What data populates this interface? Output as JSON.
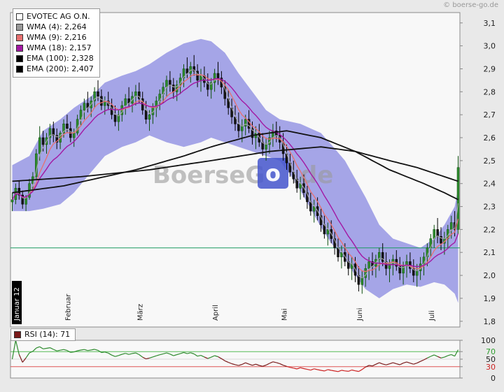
{
  "copyright": "© boerse-go.de",
  "legend": {
    "items": [
      {
        "swatch": "#ffffff",
        "label": "EVOTEC AG O.N."
      },
      {
        "swatch": "#9a9a9a",
        "label": "WMA (4): 2,264"
      },
      {
        "swatch": "#e87070",
        "label": "WMA (9): 2,216"
      },
      {
        "swatch": "#a318a3",
        "label": "WMA (18): 2,157"
      },
      {
        "swatch": "#000000",
        "label": "EMA (100): 2,328"
      },
      {
        "swatch": "#000000",
        "label": "EMA (200): 2,407"
      }
    ]
  },
  "rsi_legend": {
    "swatch": "#7a1a1a",
    "label": "RSI (14): 71"
  },
  "chart_data": {
    "type": "candlestick",
    "instrument": "EVOTEC AG O.N.",
    "ylim": [
      1.8,
      3.1
    ],
    "y_ticks": [
      {
        "value": 3.1,
        "label": "3,1"
      },
      {
        "value": 3.0,
        "label": "3,0"
      },
      {
        "value": 2.9,
        "label": "2,9"
      },
      {
        "value": 2.8,
        "label": "2,8"
      },
      {
        "value": 2.7,
        "label": "2,7"
      },
      {
        "value": 2.6,
        "label": "2,6"
      },
      {
        "value": 2.5,
        "label": "2,5"
      },
      {
        "value": 2.4,
        "label": "2,4"
      },
      {
        "value": 2.3,
        "label": "2,3"
      },
      {
        "value": 2.2,
        "label": "2,2"
      },
      {
        "value": 2.1,
        "label": "2,1"
      },
      {
        "value": 2.0,
        "label": "2,0"
      },
      {
        "value": 1.9,
        "label": "1,9"
      },
      {
        "value": 1.8,
        "label": "1,8"
      }
    ],
    "x_months": [
      {
        "label": "Januar 12",
        "index": 0,
        "highlighted": true
      },
      {
        "label": "Februar",
        "index": 15,
        "highlighted": false
      },
      {
        "label": "März",
        "index": 36,
        "highlighted": false
      },
      {
        "label": "April",
        "index": 58,
        "highlighted": false
      },
      {
        "label": "Mai",
        "index": 78,
        "highlighted": false
      },
      {
        "label": "Juni",
        "index": 100,
        "highlighted": false
      },
      {
        "label": "Juli",
        "index": 121,
        "highlighted": false
      }
    ],
    "support_line": {
      "value": 2.12,
      "color": "#1a9a60"
    },
    "candle_colors": {
      "up_fill": "#2e8b2e",
      "up_stroke": "#0d4f0d",
      "down_fill": "#161616",
      "down_stroke": "#000000"
    },
    "candles": [
      [
        2.32,
        2.36,
        2.28,
        2.33
      ],
      [
        2.33,
        2.4,
        2.31,
        2.38
      ],
      [
        2.38,
        2.41,
        2.33,
        2.35
      ],
      [
        2.35,
        2.37,
        2.29,
        2.31
      ],
      [
        2.31,
        2.35,
        2.28,
        2.34
      ],
      [
        2.34,
        2.42,
        2.33,
        2.4
      ],
      [
        2.4,
        2.45,
        2.37,
        2.43
      ],
      [
        2.43,
        2.55,
        2.42,
        2.53
      ],
      [
        2.53,
        2.65,
        2.5,
        2.6
      ],
      [
        2.6,
        2.63,
        2.54,
        2.57
      ],
      [
        2.57,
        2.62,
        2.53,
        2.6
      ],
      [
        2.6,
        2.66,
        2.57,
        2.64
      ],
      [
        2.64,
        2.67,
        2.58,
        2.61
      ],
      [
        2.61,
        2.64,
        2.55,
        2.58
      ],
      [
        2.58,
        2.63,
        2.55,
        2.62
      ],
      [
        2.62,
        2.68,
        2.6,
        2.66
      ],
      [
        2.66,
        2.7,
        2.62,
        2.64
      ],
      [
        2.64,
        2.67,
        2.58,
        2.6
      ],
      [
        2.6,
        2.64,
        2.56,
        2.62
      ],
      [
        2.62,
        2.7,
        2.61,
        2.68
      ],
      [
        2.68,
        2.74,
        2.65,
        2.72
      ],
      [
        2.72,
        2.77,
        2.68,
        2.75
      ],
      [
        2.75,
        2.8,
        2.71,
        2.73
      ],
      [
        2.73,
        2.78,
        2.69,
        2.76
      ],
      [
        2.76,
        2.82,
        2.73,
        2.8
      ],
      [
        2.8,
        2.85,
        2.76,
        2.78
      ],
      [
        2.78,
        2.81,
        2.72,
        2.74
      ],
      [
        2.74,
        2.78,
        2.7,
        2.76
      ],
      [
        2.76,
        2.8,
        2.72,
        2.74
      ],
      [
        2.74,
        2.77,
        2.68,
        2.7
      ],
      [
        2.7,
        2.74,
        2.65,
        2.67
      ],
      [
        2.67,
        2.72,
        2.63,
        2.7
      ],
      [
        2.7,
        2.76,
        2.67,
        2.74
      ],
      [
        2.74,
        2.79,
        2.7,
        2.77
      ],
      [
        2.77,
        2.82,
        2.73,
        2.75
      ],
      [
        2.75,
        2.8,
        2.71,
        2.78
      ],
      [
        2.78,
        2.83,
        2.74,
        2.8
      ],
      [
        2.8,
        2.84,
        2.75,
        2.77
      ],
      [
        2.77,
        2.8,
        2.7,
        2.72
      ],
      [
        2.72,
        2.76,
        2.66,
        2.68
      ],
      [
        2.68,
        2.72,
        2.63,
        2.7
      ],
      [
        2.7,
        2.75,
        2.66,
        2.73
      ],
      [
        2.73,
        2.78,
        2.69,
        2.76
      ],
      [
        2.76,
        2.81,
        2.72,
        2.79
      ],
      [
        2.79,
        2.84,
        2.75,
        2.82
      ],
      [
        2.82,
        2.87,
        2.78,
        2.85
      ],
      [
        2.85,
        2.89,
        2.8,
        2.83
      ],
      [
        2.83,
        2.86,
        2.77,
        2.8
      ],
      [
        2.8,
        2.85,
        2.76,
        2.83
      ],
      [
        2.83,
        2.88,
        2.79,
        2.86
      ],
      [
        2.86,
        2.92,
        2.82,
        2.9
      ],
      [
        2.9,
        2.95,
        2.86,
        2.88
      ],
      [
        2.88,
        2.93,
        2.84,
        2.91
      ],
      [
        2.91,
        2.96,
        2.87,
        2.89
      ],
      [
        2.89,
        2.92,
        2.82,
        2.85
      ],
      [
        2.85,
        2.9,
        2.8,
        2.87
      ],
      [
        2.87,
        2.91,
        2.82,
        2.84
      ],
      [
        2.84,
        2.88,
        2.78,
        2.81
      ],
      [
        2.81,
        2.86,
        2.77,
        2.84
      ],
      [
        2.84,
        2.9,
        2.8,
        2.88
      ],
      [
        2.88,
        2.93,
        2.83,
        2.86
      ],
      [
        2.86,
        2.89,
        2.79,
        2.82
      ],
      [
        2.82,
        2.85,
        2.74,
        2.77
      ],
      [
        2.77,
        2.81,
        2.7,
        2.73
      ],
      [
        2.73,
        2.77,
        2.66,
        2.69
      ],
      [
        2.69,
        2.74,
        2.63,
        2.66
      ],
      [
        2.66,
        2.71,
        2.6,
        2.63
      ],
      [
        2.63,
        2.68,
        2.58,
        2.65
      ],
      [
        2.65,
        2.7,
        2.61,
        2.68
      ],
      [
        2.68,
        2.72,
        2.62,
        2.64
      ],
      [
        2.64,
        2.67,
        2.57,
        2.6
      ],
      [
        2.6,
        2.65,
        2.55,
        2.62
      ],
      [
        2.62,
        2.66,
        2.56,
        2.58
      ],
      [
        2.58,
        2.62,
        2.52,
        2.55
      ],
      [
        2.55,
        2.6,
        2.5,
        2.57
      ],
      [
        2.57,
        2.63,
        2.53,
        2.6
      ],
      [
        2.6,
        2.66,
        2.56,
        2.63
      ],
      [
        2.63,
        2.67,
        2.58,
        2.61
      ],
      [
        2.61,
        2.65,
        2.55,
        2.58
      ],
      [
        2.58,
        2.62,
        2.5,
        2.53
      ],
      [
        2.53,
        2.57,
        2.46,
        2.49
      ],
      [
        2.49,
        2.53,
        2.43,
        2.45
      ],
      [
        2.45,
        2.5,
        2.4,
        2.42
      ],
      [
        2.42,
        2.46,
        2.36,
        2.38
      ],
      [
        2.38,
        2.43,
        2.33,
        2.4
      ],
      [
        2.4,
        2.44,
        2.34,
        2.36
      ],
      [
        2.36,
        2.39,
        2.29,
        2.32
      ],
      [
        2.32,
        2.36,
        2.26,
        2.28
      ],
      [
        2.28,
        2.33,
        2.23,
        2.3
      ],
      [
        2.3,
        2.34,
        2.24,
        2.26
      ],
      [
        2.26,
        2.29,
        2.19,
        2.22
      ],
      [
        2.22,
        2.26,
        2.16,
        2.18
      ],
      [
        2.18,
        2.23,
        2.13,
        2.2
      ],
      [
        2.2,
        2.24,
        2.14,
        2.16
      ],
      [
        2.16,
        2.19,
        2.09,
        2.12
      ],
      [
        2.12,
        2.16,
        2.06,
        2.08
      ],
      [
        2.08,
        2.13,
        2.03,
        2.1
      ],
      [
        2.1,
        2.14,
        2.04,
        2.06
      ],
      [
        2.06,
        2.1,
        2.0,
        2.03
      ],
      [
        2.03,
        2.08,
        1.98,
        2.05
      ],
      [
        2.05,
        2.08,
        1.97,
        2.0
      ],
      [
        2.0,
        2.04,
        1.93,
        1.96
      ],
      [
        1.96,
        2.02,
        1.92,
        1.99
      ],
      [
        1.99,
        2.05,
        1.95,
        2.03
      ],
      [
        2.03,
        2.08,
        1.98,
        2.06
      ],
      [
        2.06,
        2.1,
        2.0,
        2.04
      ],
      [
        2.04,
        2.09,
        1.99,
        2.07
      ],
      [
        2.07,
        2.12,
        2.02,
        2.1
      ],
      [
        2.1,
        2.14,
        2.04,
        2.06
      ],
      [
        2.06,
        2.1,
        2.0,
        2.03
      ],
      [
        2.03,
        2.07,
        1.97,
        2.05
      ],
      [
        2.05,
        2.09,
        2.0,
        2.07
      ],
      [
        2.07,
        2.11,
        2.02,
        2.04
      ],
      [
        2.04,
        2.08,
        1.98,
        2.01
      ],
      [
        2.01,
        2.06,
        1.96,
        2.04
      ],
      [
        2.04,
        2.09,
        1.99,
        2.06
      ],
      [
        2.06,
        2.1,
        2.01,
        2.03
      ],
      [
        2.03,
        2.07,
        1.97,
        2.0
      ],
      [
        2.0,
        2.05,
        1.95,
        2.02
      ],
      [
        2.02,
        2.08,
        1.98,
        2.05
      ],
      [
        2.05,
        2.1,
        2.0,
        2.08
      ],
      [
        2.08,
        2.14,
        2.04,
        2.12
      ],
      [
        2.12,
        2.18,
        2.08,
        2.16
      ],
      [
        2.16,
        2.22,
        2.12,
        2.2
      ],
      [
        2.2,
        2.25,
        2.14,
        2.17
      ],
      [
        2.17,
        2.21,
        2.11,
        2.14
      ],
      [
        2.14,
        2.19,
        2.09,
        2.16
      ],
      [
        2.16,
        2.22,
        2.12,
        2.2
      ],
      [
        2.2,
        2.26,
        2.16,
        2.23
      ],
      [
        2.23,
        2.28,
        2.17,
        2.2
      ],
      [
        2.2,
        2.52,
        2.18,
        2.47
      ]
    ],
    "band": {
      "name": "bollinger-area",
      "fill": "#9b9be4",
      "opacity": 0.9,
      "keypoints": [
        [
          0,
          2.48,
          2.28
        ],
        [
          5,
          2.52,
          2.28
        ],
        [
          9,
          2.63,
          2.29
        ],
        [
          14,
          2.68,
          2.31
        ],
        [
          18,
          2.73,
          2.36
        ],
        [
          23,
          2.78,
          2.45
        ],
        [
          27,
          2.84,
          2.52
        ],
        [
          32,
          2.87,
          2.56
        ],
        [
          36,
          2.89,
          2.58
        ],
        [
          40,
          2.92,
          2.61
        ],
        [
          45,
          2.97,
          2.58
        ],
        [
          50,
          3.01,
          2.56
        ],
        [
          55,
          3.03,
          2.58
        ],
        [
          58,
          3.02,
          2.6
        ],
        [
          62,
          2.97,
          2.58
        ],
        [
          66,
          2.88,
          2.56
        ],
        [
          70,
          2.8,
          2.54
        ],
        [
          74,
          2.72,
          2.52
        ],
        [
          78,
          2.68,
          2.5
        ],
        [
          81,
          2.67,
          2.44
        ],
        [
          84,
          2.66,
          2.37
        ],
        [
          87,
          2.64,
          2.29
        ],
        [
          90,
          2.62,
          2.21
        ],
        [
          93,
          2.57,
          2.14
        ],
        [
          97,
          2.5,
          2.07
        ],
        [
          100,
          2.42,
          2.0
        ],
        [
          103,
          2.34,
          1.94
        ],
        [
          107,
          2.22,
          1.9
        ],
        [
          111,
          2.16,
          1.94
        ],
        [
          115,
          2.14,
          1.96
        ],
        [
          119,
          2.12,
          1.95
        ],
        [
          123,
          2.16,
          1.97
        ],
        [
          126,
          2.22,
          1.96
        ],
        [
          129,
          2.3,
          1.92
        ],
        [
          130,
          2.38,
          1.88
        ]
      ]
    },
    "overlays": {
      "wma4": {
        "period": 4,
        "color": "#a8a8a8",
        "value": "2,264"
      },
      "wma9": {
        "period": 9,
        "color": "#e87070",
        "value": "2,216"
      },
      "wma18": {
        "period": 18,
        "color": "#a318a3",
        "value": "2,157"
      },
      "ema100": {
        "color": "#111111",
        "value": "2,328",
        "keypoints": [
          [
            0,
            2.36
          ],
          [
            15,
            2.39
          ],
          [
            36,
            2.46
          ],
          [
            50,
            2.52
          ],
          [
            58,
            2.56
          ],
          [
            70,
            2.61
          ],
          [
            80,
            2.63
          ],
          [
            90,
            2.6
          ],
          [
            100,
            2.54
          ],
          [
            110,
            2.46
          ],
          [
            120,
            2.4
          ],
          [
            126,
            2.36
          ],
          [
            130,
            2.33
          ]
        ]
      },
      "ema200": {
        "color": "#111111",
        "value": "2,407",
        "keypoints": [
          [
            0,
            2.41
          ],
          [
            20,
            2.43
          ],
          [
            40,
            2.46
          ],
          [
            58,
            2.5
          ],
          [
            75,
            2.54
          ],
          [
            90,
            2.56
          ],
          [
            100,
            2.54
          ],
          [
            110,
            2.5
          ],
          [
            118,
            2.47
          ],
          [
            124,
            2.44
          ],
          [
            130,
            2.41
          ]
        ]
      }
    },
    "rsi": {
      "label": "RSI (14): 71",
      "period": 14,
      "last_value": 71,
      "ylim": [
        0,
        100
      ],
      "ticks": [
        {
          "value": 100,
          "label": "100",
          "color": "#222222"
        },
        {
          "value": 70,
          "label": "70",
          "color": "#2e9e2e"
        },
        {
          "value": 50,
          "label": "50",
          "color": "#222222"
        },
        {
          "value": 30,
          "label": "30",
          "color": "#cc2222"
        },
        {
          "value": 0,
          "label": "0",
          "color": "#222222"
        }
      ],
      "levels": [
        {
          "value": 70,
          "color": "#55bb55"
        },
        {
          "value": 50,
          "color": "#d8d8d8"
        },
        {
          "value": 30,
          "color": "#dd5555"
        }
      ],
      "line_colors": {
        "high": "#2e8b2e",
        "mid": "#7a1a1a",
        "low": "#cc2222"
      }
    },
    "watermark": {
      "left": "BoerseG",
      "boxed": "o",
      "right": ".de",
      "box_color": "#4455cc",
      "text_color": "#999999"
    }
  }
}
